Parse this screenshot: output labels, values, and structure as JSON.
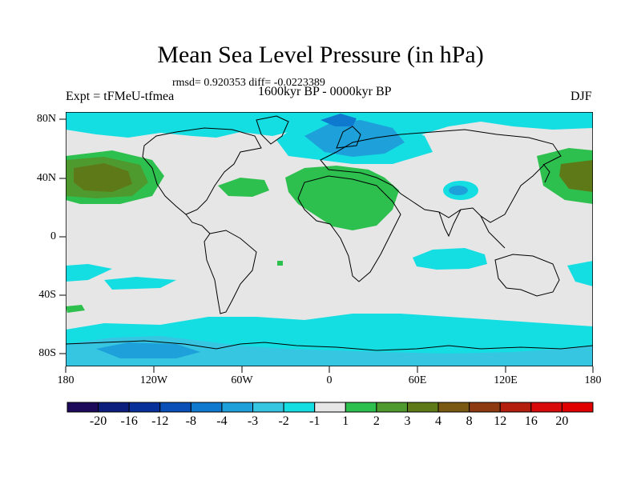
{
  "title": "Mean Sea Level Pressure (in hPa)",
  "stats": "rmsd= 0.920353 diff= -0.0223389",
  "experiment": "Expt = tFMeU-tfmea",
  "period": "1600kyr BP - 0000kyr BP",
  "season": "DJF",
  "lat_labels": [
    "80N",
    "40N",
    "0",
    "40S",
    "80S"
  ],
  "lon_labels": [
    "180",
    "120W",
    "60W",
    "0",
    "60E",
    "120E",
    "180"
  ],
  "colorbar": {
    "labels": [
      "-20",
      "-16",
      "-12",
      "-8",
      "-4",
      "-3",
      "-2",
      "-1",
      "1",
      "2",
      "3",
      "4",
      "8",
      "12",
      "16",
      "20"
    ],
    "colors": [
      "#1e0a5a",
      "#0c1f7c",
      "#08309a",
      "#0a4fb8",
      "#0f79cf",
      "#1ea0da",
      "#36c6e2",
      "#14dee2",
      "#e6e6e6",
      "#2ec04e",
      "#4e9a2e",
      "#5e7a18",
      "#7a5a12",
      "#8e3a10",
      "#b41e0c",
      "#d80a0a",
      "#e00000"
    ]
  }
}
